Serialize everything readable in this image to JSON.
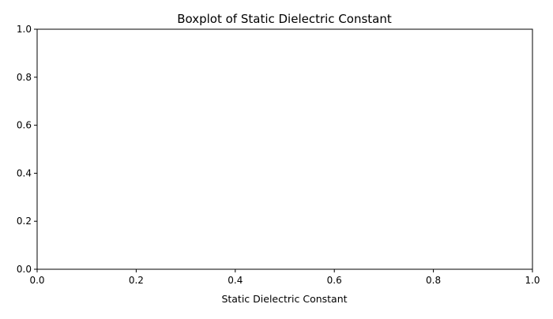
{
  "chart_data": {
    "type": "boxplot",
    "title": "Boxplot of Static Dielectric Constant",
    "xlabel": "Static Dielectric Constant",
    "ylabel": "",
    "xlim": [
      0.0,
      1.0
    ],
    "ylim": [
      0.0,
      1.0
    ],
    "x_ticks": [
      "0.0",
      "0.2",
      "0.4",
      "0.6",
      "0.8",
      "1.0"
    ],
    "y_ticks": [
      "0.0",
      "0.2",
      "0.4",
      "0.6",
      "0.8",
      "1.0"
    ],
    "x_tick_values": [
      0.0,
      0.2,
      0.4,
      0.6,
      0.8,
      1.0
    ],
    "y_tick_values": [
      0.0,
      0.2,
      0.4,
      0.6,
      0.8,
      1.0
    ],
    "grid": false,
    "series": []
  }
}
